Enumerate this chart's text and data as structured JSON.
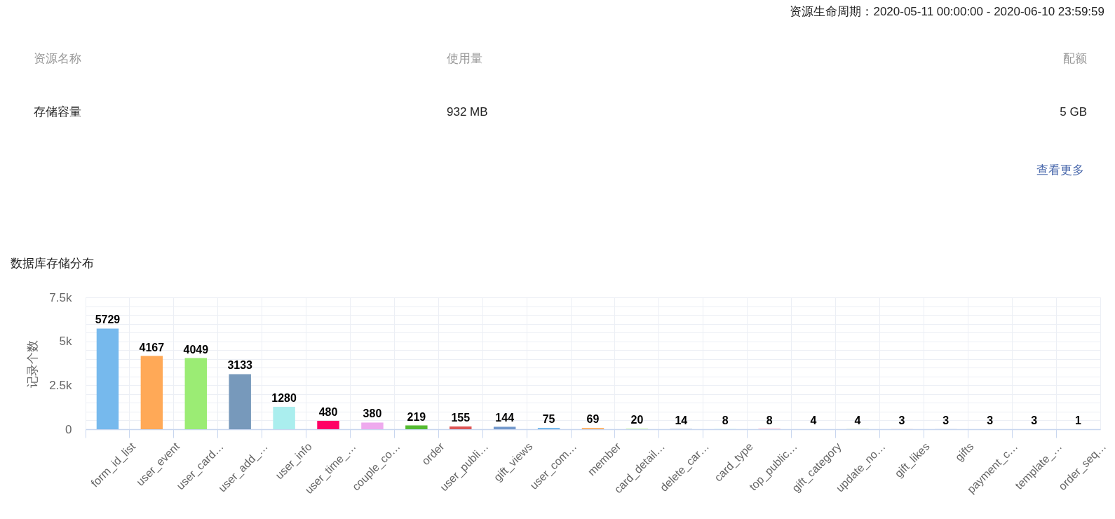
{
  "chart_data": {
    "type": "bar",
    "title": "数据库存储分布",
    "ylabel": "记录个数",
    "categories": [
      "form_id_list",
      "user_event",
      "user_card…",
      "user_add_…",
      "user_info",
      "user_time_…",
      "couple_co…",
      "order",
      "user_publi…",
      "gift_views",
      "user_com…",
      "member",
      "card_detail…",
      "delete_car…",
      "card_type",
      "top_public…",
      "gift_category",
      "update_no…",
      "gift_likes",
      "gifts",
      "payment_c…",
      "template_…",
      "order_seq…"
    ],
    "values": [
      5729,
      4167,
      4049,
      3133,
      1280,
      480,
      380,
      219,
      155,
      144,
      75,
      69,
      20,
      14,
      8,
      8,
      4,
      4,
      3,
      3,
      3,
      3,
      1
    ],
    "colors": [
      "#76b9ed",
      "#ffa957",
      "#9bec74",
      "#7799bb",
      "#aaeeee",
      "#ff0066",
      "#eeaaee",
      "#55bb33",
      "#dd5555",
      "#7399cc",
      "#76b9ed",
      "#ffa957",
      "#9bec74",
      "#7799bb",
      "#aaeeee",
      "#ff0066",
      "#eeaaee",
      "#55bb33",
      "#dd5555",
      "#7399cc",
      "#76b9ed",
      "#ffa957",
      "#9bec74"
    ],
    "ylim": [
      0,
      7500
    ],
    "yticks": [
      0,
      {
        "value": 500,
        "label": null
      },
      {
        "value": 1000,
        "label": null
      },
      {
        "value": 1500,
        "label": null
      },
      {
        "value": 2000,
        "label": null
      },
      {
        "value": 2500,
        "label": "2.5k"
      },
      {
        "value": 3000,
        "label": null
      },
      {
        "value": 3500,
        "label": null
      },
      {
        "value": 4000,
        "label": null
      },
      {
        "value": 4500,
        "label": null
      },
      {
        "value": 5000,
        "label": "5k"
      },
      {
        "value": 5500,
        "label": null
      },
      {
        "value": 6000,
        "label": null
      },
      {
        "value": 6500,
        "label": null
      },
      {
        "value": 7000,
        "label": null
      },
      {
        "value": 7500,
        "label": "7.5k"
      }
    ],
    "grid": true,
    "data_labels": true,
    "annotations": [
      "资源生命周期：2020-05-11 00:00:00 - 2020-06-10 23:59:59",
      "资源名称",
      "使用量",
      "配额",
      "存储容量",
      "932 MB",
      "5 GB",
      "查看更多"
    ]
  }
}
